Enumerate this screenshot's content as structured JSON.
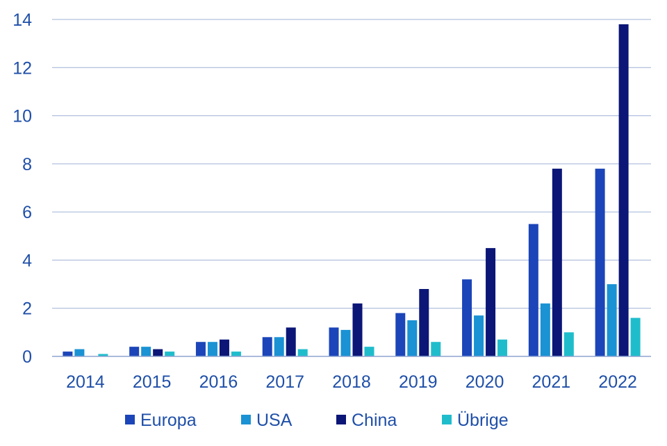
{
  "chart_data": {
    "type": "bar",
    "title": "",
    "xlabel": "",
    "ylabel": "",
    "categories": [
      "2014",
      "2015",
      "2016",
      "2017",
      "2018",
      "2019",
      "2020",
      "2021",
      "2022"
    ],
    "ylim": [
      0,
      14
    ],
    "yticks": [
      "0",
      "2",
      "4",
      "6",
      "8",
      "10",
      "12",
      "14"
    ],
    "grid": "horizontal",
    "legend_position": "bottom",
    "series": [
      {
        "name": "Europa",
        "color": "#1b45b8",
        "values": [
          0.2,
          0.4,
          0.6,
          0.8,
          1.2,
          1.8,
          3.2,
          5.5,
          7.8
        ]
      },
      {
        "name": "USA",
        "color": "#1a92d4",
        "values": [
          0.3,
          0.4,
          0.6,
          0.8,
          1.1,
          1.5,
          1.7,
          2.2,
          3.0
        ]
      },
      {
        "name": "China",
        "color": "#0b1677",
        "values": [
          0.0,
          0.3,
          0.7,
          1.2,
          2.2,
          2.8,
          4.5,
          7.8,
          13.8
        ]
      },
      {
        "name": "Übrige",
        "color": "#1fbdcc",
        "values": [
          0.1,
          0.2,
          0.2,
          0.3,
          0.4,
          0.6,
          0.7,
          1.0,
          1.6
        ]
      }
    ]
  }
}
